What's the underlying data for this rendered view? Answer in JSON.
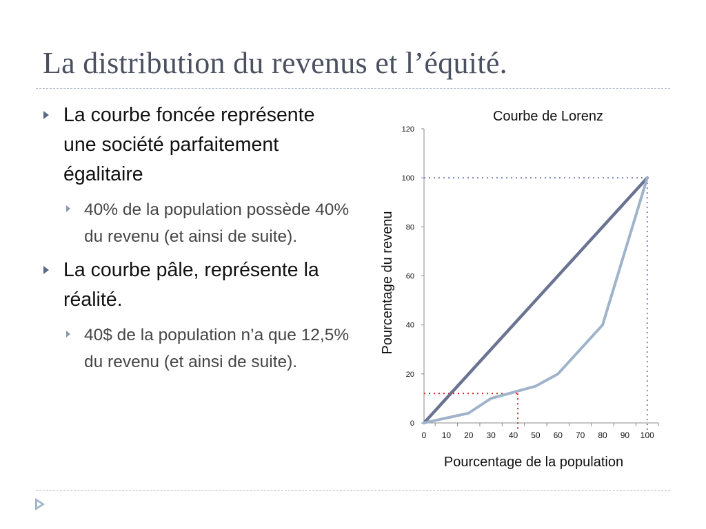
{
  "slide": {
    "title": "La distribution du revenus et l’équité."
  },
  "bullets": [
    {
      "text": "La courbe foncée représente une société parfaitement égalitaire",
      "sub": "40% de la population possède 40% du revenu (et ainsi de suite)."
    },
    {
      "text": "La courbe pâle, représente la réalité.",
      "sub": "40$ de la population n’a que 12,5% du revenu (et ainsi de suite)."
    }
  ],
  "colors": {
    "title": "#4a5060",
    "dark_curve": "#6b7392",
    "light_curve": "#9fb3cb",
    "guide_red": "#e02020",
    "guide_blue": "#7a7fc0"
  },
  "chart_data": {
    "type": "line",
    "title": "Courbe de Lorenz",
    "xlabel": "Pourcentage de la population",
    "ylabel": "Pourcentage du revenu",
    "xlim": [
      0,
      105
    ],
    "ylim": [
      0,
      120
    ],
    "xticks": [
      0,
      10,
      20,
      30,
      40,
      50,
      60,
      70,
      80,
      90,
      100
    ],
    "yticks": [
      0,
      20,
      40,
      60,
      80,
      100,
      120
    ],
    "grid": false,
    "series": [
      {
        "x": [
          0,
          100
        ],
        "y": [
          0,
          100
        ],
        "color": "#6b7392"
      },
      {
        "x": [
          0,
          10,
          20,
          30,
          40,
          50,
          60,
          80,
          100
        ],
        "y": [
          0,
          2,
          4,
          10,
          12.5,
          15,
          20,
          40,
          100
        ],
        "color": "#9fb3cb"
      }
    ],
    "annotations": [
      {
        "type": "guide",
        "x": 42,
        "y": 12,
        "color": "#e02020"
      },
      {
        "type": "guide",
        "x": 100,
        "y": 100,
        "color": "#7a7fc0"
      }
    ]
  },
  "nav": {
    "icon": "play-arrow-icon"
  }
}
